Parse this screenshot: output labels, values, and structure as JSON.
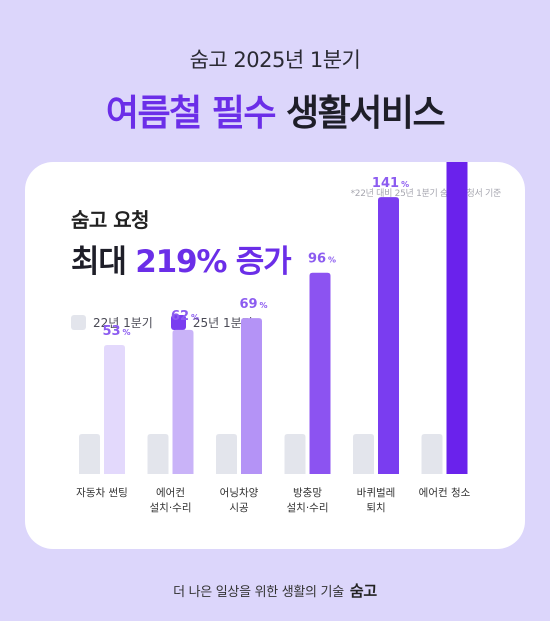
{
  "header": {
    "subtitle": "숨고 2025년 1분기",
    "title_highlight": "여름철 필수",
    "title_rest": "생활서비스"
  },
  "card": {
    "footnote": "*22년 대비 25년 1분기 숨고 요청서 기준",
    "subtitle": "숨고 요청",
    "headline_prefix": "최대",
    "headline_accent": "219% 증가"
  },
  "legend": {
    "items": [
      {
        "label": "22년 1분기",
        "color": "#e3e5ec"
      },
      {
        "label": "25년 1분기",
        "color": "#7a3df0"
      }
    ]
  },
  "chart_data": {
    "type": "bar",
    "categories": [
      [
        "자동차 썬팅"
      ],
      [
        "에어컨",
        "설치·수리"
      ],
      [
        "어닝차양",
        "시공"
      ],
      [
        "방충망",
        "설치·수리"
      ],
      [
        "바퀴벌레",
        "퇴치"
      ],
      [
        "에어컨 청소"
      ]
    ],
    "series": [
      {
        "name": "22년 1분기",
        "values": [
          100,
          100,
          100,
          100,
          100,
          100
        ]
      },
      {
        "name": "25년 1분기",
        "values": [
          153,
          162,
          169,
          196,
          241,
          319
        ]
      }
    ],
    "increase_labels": [
      "53",
      "62",
      "69",
      "96",
      "141",
      "219"
    ],
    "increase_unit": "%",
    "bar_colors": [
      "#e3d9fc",
      "#c9b3f8",
      "#b493f6",
      "#8c53f1",
      "#7a3df0",
      "#6a22ec"
    ],
    "baseline_color": "#e3e5ec",
    "label_color": "#8c5cf0",
    "highlight_index": 5,
    "highlight_color": "#6a22ec"
  },
  "footer": {
    "tagline": "더 나은 일상을 위한 생활의 기술",
    "brand": "숨고"
  }
}
